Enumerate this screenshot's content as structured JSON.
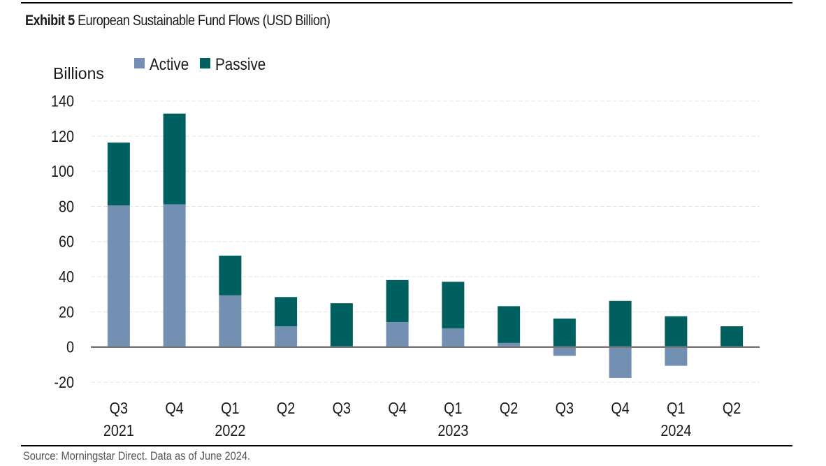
{
  "header": {
    "title_lead": "Exhibit 5",
    "title_rest": "European Sustainable Fund Flows (USD Billion)"
  },
  "footer": {
    "source": "Source: Morningstar Direct. Data as of June 2024."
  },
  "colors": {
    "active": "#7390b2",
    "passive": "#00605f",
    "grid": "#e4e4e4",
    "axis": "#777777"
  },
  "chart_data": {
    "type": "bar",
    "stacked": true,
    "title": "Exhibit 5 European Sustainable Fund Flows (USD Billion)",
    "xlabel": "",
    "ylabel": "Billions",
    "ylim": [
      -20,
      140
    ],
    "yticks": [
      -20,
      0,
      20,
      40,
      60,
      80,
      100,
      120,
      140
    ],
    "grid": true,
    "legend": "top-left",
    "categories": [
      "Q3 2021",
      "Q4 2021",
      "Q1 2022",
      "Q2 2022",
      "Q3 2022",
      "Q4 2022",
      "Q1 2023",
      "Q2 2023",
      "Q3 2023",
      "Q4 2023",
      "Q1 2024",
      "Q2 2024"
    ],
    "tick_labels": [
      {
        "quarter": "Q3",
        "year": "2021"
      },
      {
        "quarter": "Q4",
        "year": ""
      },
      {
        "quarter": "Q1",
        "year": "2022"
      },
      {
        "quarter": "Q2",
        "year": ""
      },
      {
        "quarter": "Q3",
        "year": ""
      },
      {
        "quarter": "Q4",
        "year": ""
      },
      {
        "quarter": "Q1",
        "year": "2023"
      },
      {
        "quarter": "Q2",
        "year": ""
      },
      {
        "quarter": "Q3",
        "year": ""
      },
      {
        "quarter": "Q4",
        "year": ""
      },
      {
        "quarter": "Q1",
        "year": "2024"
      },
      {
        "quarter": "Q2",
        "year": ""
      }
    ],
    "series": [
      {
        "name": "Active",
        "values": [
          80.6,
          81.2,
          29.4,
          11.8,
          0.2,
          14.2,
          10.6,
          2.3,
          -5.0,
          -17.6,
          -10.7,
          0.2
        ]
      },
      {
        "name": "Passive",
        "values": [
          35.7,
          51.6,
          22.6,
          16.6,
          24.7,
          23.9,
          26.5,
          20.9,
          16.2,
          26.2,
          17.5,
          11.6
        ]
      }
    ]
  }
}
